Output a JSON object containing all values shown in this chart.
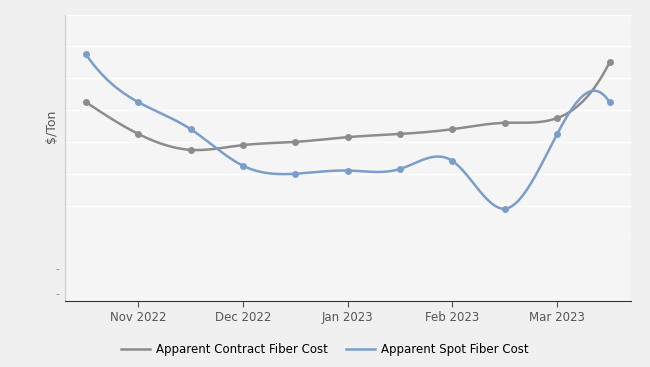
{
  "x_labels": [
    "Nov 2022",
    "Dec 2022",
    "Jan 2023",
    "Feb 2023",
    "Mar 2023"
  ],
  "x_tick_positions": [
    1,
    2,
    3,
    4,
    5
  ],
  "contract_x": [
    0.5,
    1.0,
    1.5,
    2.0,
    2.5,
    3.0,
    3.5,
    4.0,
    4.5,
    5.0,
    5.5
  ],
  "contract_y": [
    185,
    165,
    155,
    158,
    160,
    163,
    165,
    168,
    172,
    175,
    210
  ],
  "spot_x": [
    0.5,
    1.0,
    1.5,
    2.0,
    2.5,
    3.0,
    3.5,
    4.0,
    4.5,
    5.0,
    5.5
  ],
  "spot_y": [
    215,
    185,
    168,
    145,
    140,
    142,
    143,
    148,
    118,
    165,
    185
  ],
  "contract_color": "#8c8c8c",
  "spot_color": "#7b9ec9",
  "contract_label": "Apparent Contract Fiber Cost",
  "spot_label": "Apparent Spot Fiber Cost",
  "ylabel": "$/Ton",
  "ylim_main": [
    100,
    240
  ],
  "ylim_lower": [
    0,
    30
  ],
  "background_color": "#f5f5f5",
  "grid_color": "#ffffff",
  "line_width": 1.8,
  "marker": "o",
  "marker_size": 4
}
